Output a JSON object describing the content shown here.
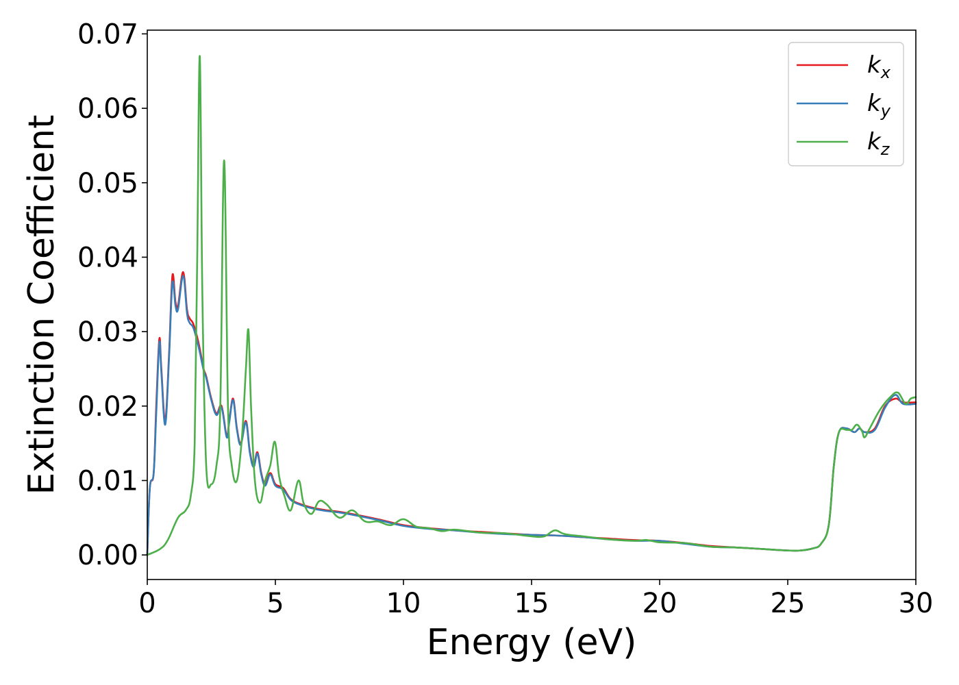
{
  "chart_data": {
    "type": "line",
    "title": "",
    "xlabel": "Energy (eV)",
    "ylabel": "Extinction Coefficient",
    "xlim": [
      0,
      30
    ],
    "ylim": [
      -0.0033,
      0.0705
    ],
    "xticks": [
      0,
      5,
      10,
      15,
      20,
      25,
      30
    ],
    "xtick_labels": [
      "0",
      "5",
      "10",
      "15",
      "20",
      "25",
      "30"
    ],
    "yticks": [
      0.0,
      0.01,
      0.02,
      0.03,
      0.04,
      0.05,
      0.06,
      0.07
    ],
    "ytick_labels": [
      "0.00",
      "0.01",
      "0.02",
      "0.03",
      "0.04",
      "0.05",
      "0.06",
      "0.07"
    ],
    "grid": false,
    "legend_position": "top-right",
    "series": [
      {
        "name": "k",
        "subscript": "x",
        "color": "#e41a1c",
        "x": [
          0,
          0.1,
          0.25,
          0.35,
          0.47,
          0.55,
          0.7,
          0.85,
          0.98,
          1.1,
          1.2,
          1.4,
          1.55,
          1.65,
          1.8,
          2.0,
          2.2,
          2.3,
          2.5,
          2.7,
          2.9,
          3.1,
          3.2,
          3.35,
          3.5,
          3.65,
          3.85,
          4.0,
          4.15,
          4.3,
          4.45,
          4.6,
          4.8,
          5.0,
          5.3,
          5.6,
          6.0,
          6.5,
          7.0,
          7.5,
          8.0,
          9.0,
          10.0,
          11.0,
          12.0,
          13.0,
          14.0,
          15.0,
          16.0,
          17.0,
          18.0,
          19.0,
          20.0,
          21.0,
          22.0,
          23.0,
          24.0,
          25.0,
          25.5,
          26.0,
          26.3,
          26.6,
          26.8,
          27.0,
          27.3,
          27.6,
          27.8,
          28.0,
          28.4,
          28.8,
          29.2,
          29.5,
          30.0
        ],
        "y": [
          0.0,
          0.009,
          0.011,
          0.02,
          0.029,
          0.025,
          0.018,
          0.027,
          0.0375,
          0.034,
          0.0335,
          0.038,
          0.033,
          0.0318,
          0.031,
          0.0285,
          0.025,
          0.024,
          0.021,
          0.019,
          0.02,
          0.016,
          0.018,
          0.021,
          0.017,
          0.015,
          0.018,
          0.014,
          0.012,
          0.0138,
          0.011,
          0.0095,
          0.011,
          0.0095,
          0.009,
          0.0075,
          0.0068,
          0.0063,
          0.006,
          0.0058,
          0.0055,
          0.0048,
          0.004,
          0.0036,
          0.0033,
          0.0031,
          0.0029,
          0.0027,
          0.0026,
          0.0024,
          0.0022,
          0.002,
          0.0019,
          0.0016,
          0.0012,
          0.001,
          0.0008,
          0.0006,
          0.0006,
          0.0009,
          0.0015,
          0.004,
          0.012,
          0.0165,
          0.017,
          0.0165,
          0.017,
          0.0165,
          0.017,
          0.02,
          0.021,
          0.0205,
          0.0205
        ]
      },
      {
        "name": "k",
        "subscript": "y",
        "color": "#377eb8",
        "x": [
          0,
          0.1,
          0.25,
          0.35,
          0.47,
          0.55,
          0.7,
          0.85,
          0.98,
          1.1,
          1.2,
          1.4,
          1.55,
          1.65,
          1.8,
          2.0,
          2.2,
          2.3,
          2.5,
          2.7,
          2.9,
          3.1,
          3.2,
          3.35,
          3.5,
          3.65,
          3.85,
          4.0,
          4.15,
          4.3,
          4.45,
          4.6,
          4.8,
          5.0,
          5.3,
          5.6,
          6.0,
          6.5,
          7.0,
          7.5,
          8.0,
          9.0,
          10.0,
          11.0,
          12.0,
          13.0,
          14.0,
          15.0,
          16.0,
          17.0,
          18.0,
          19.0,
          20.0,
          21.0,
          22.0,
          23.0,
          24.0,
          25.0,
          25.5,
          26.0,
          26.3,
          26.6,
          26.8,
          27.0,
          27.3,
          27.6,
          27.8,
          28.0,
          28.4,
          28.8,
          29.2,
          29.5,
          30.0
        ],
        "y": [
          0.0,
          0.009,
          0.011,
          0.019,
          0.0285,
          0.0245,
          0.0175,
          0.0265,
          0.0365,
          0.0335,
          0.033,
          0.0375,
          0.0325,
          0.0312,
          0.0305,
          0.028,
          0.0248,
          0.0238,
          0.0208,
          0.0188,
          0.0198,
          0.0158,
          0.0178,
          0.0208,
          0.0168,
          0.0148,
          0.0178,
          0.0138,
          0.0118,
          0.0136,
          0.0108,
          0.0093,
          0.0108,
          0.0093,
          0.0088,
          0.0074,
          0.0067,
          0.0062,
          0.0059,
          0.0057,
          0.0054,
          0.0047,
          0.0039,
          0.0035,
          0.0033,
          0.003,
          0.0028,
          0.0027,
          0.0026,
          0.0024,
          0.0021,
          0.0019,
          0.0019,
          0.0015,
          0.0011,
          0.001,
          0.0008,
          0.0006,
          0.0006,
          0.0009,
          0.0015,
          0.004,
          0.012,
          0.0165,
          0.017,
          0.0165,
          0.017,
          0.0165,
          0.0168,
          0.0198,
          0.0215,
          0.0203,
          0.0203
        ]
      },
      {
        "name": "k",
        "subscript": "z",
        "color": "#4daf4a",
        "x": [
          0,
          0.5,
          0.8,
          1.2,
          1.5,
          1.7,
          1.85,
          1.95,
          2.05,
          2.15,
          2.3,
          2.5,
          2.7,
          2.85,
          3.0,
          3.15,
          3.3,
          3.5,
          3.7,
          3.85,
          3.95,
          4.05,
          4.2,
          4.4,
          4.6,
          4.8,
          4.98,
          5.15,
          5.35,
          5.6,
          5.9,
          6.1,
          6.4,
          6.7,
          7.0,
          7.5,
          8.0,
          8.5,
          9.0,
          9.5,
          10.0,
          10.5,
          11.0,
          11.5,
          12.0,
          13.0,
          14.0,
          15.0,
          15.5,
          15.9,
          16.3,
          17.0,
          18.0,
          19.0,
          19.5,
          20.0,
          21.0,
          22.0,
          23.0,
          24.0,
          25.0,
          25.5,
          26.0,
          26.3,
          26.6,
          26.8,
          27.0,
          27.3,
          27.5,
          27.7,
          27.9,
          28.0,
          28.2,
          28.6,
          29.0,
          29.3,
          29.6,
          29.8,
          30.0
        ],
        "y": [
          0.0,
          0.0008,
          0.002,
          0.005,
          0.006,
          0.008,
          0.015,
          0.04,
          0.067,
          0.035,
          0.012,
          0.0095,
          0.012,
          0.02,
          0.053,
          0.02,
          0.012,
          0.01,
          0.016,
          0.025,
          0.0302,
          0.02,
          0.01,
          0.007,
          0.01,
          0.012,
          0.0152,
          0.0105,
          0.008,
          0.006,
          0.01,
          0.007,
          0.0055,
          0.0072,
          0.0068,
          0.005,
          0.006,
          0.0045,
          0.0045,
          0.004,
          0.0048,
          0.0038,
          0.0036,
          0.0032,
          0.0034,
          0.003,
          0.0029,
          0.0025,
          0.0025,
          0.0033,
          0.0028,
          0.0025,
          0.0021,
          0.0019,
          0.002,
          0.0017,
          0.0016,
          0.0011,
          0.001,
          0.0008,
          0.0006,
          0.0006,
          0.0009,
          0.0015,
          0.004,
          0.012,
          0.0165,
          0.0168,
          0.0168,
          0.0175,
          0.0166,
          0.0158,
          0.017,
          0.0195,
          0.0212,
          0.0218,
          0.0203,
          0.021,
          0.0212
        ]
      }
    ]
  }
}
